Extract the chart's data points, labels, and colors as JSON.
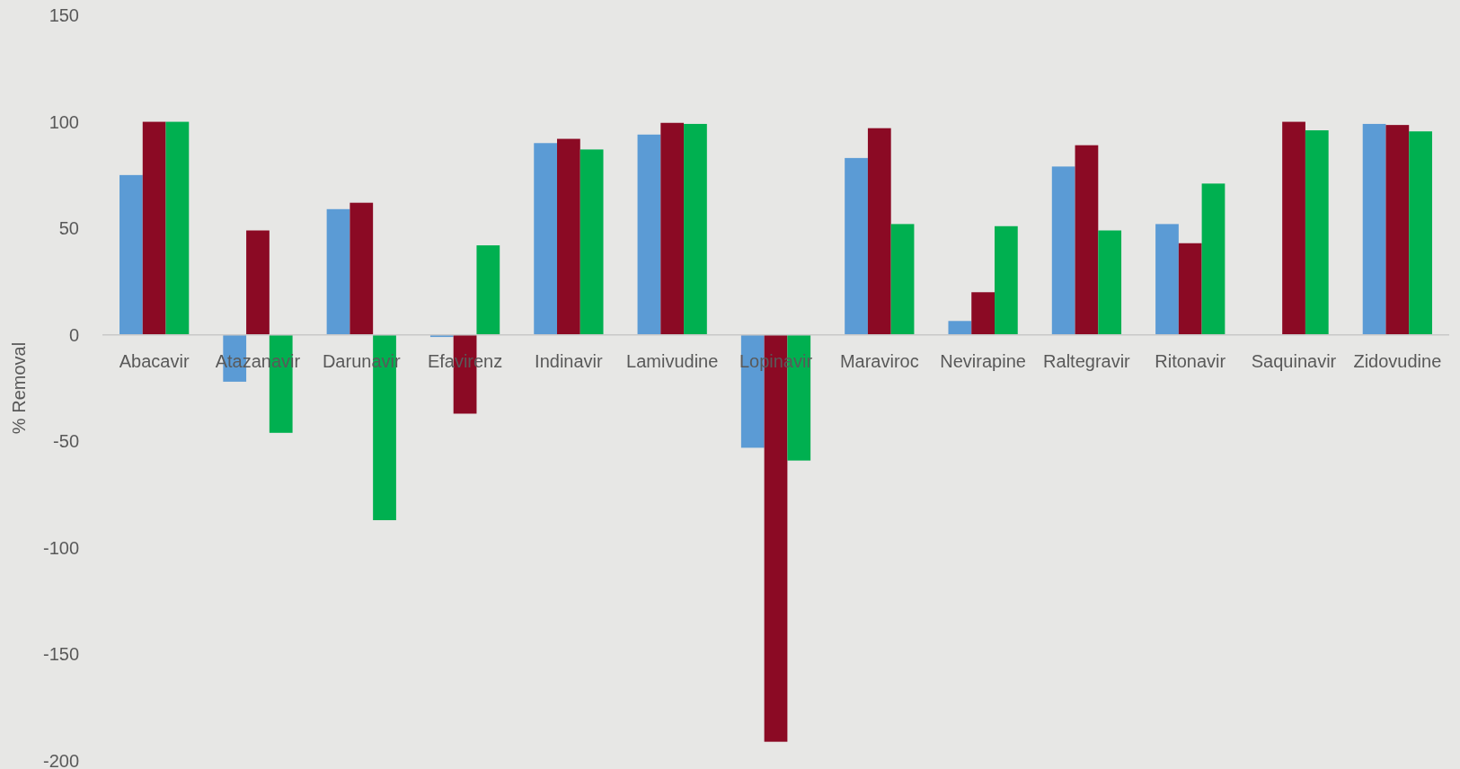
{
  "chart_data": {
    "type": "bar",
    "ylabel": "% Removal",
    "categories": [
      "Abacavir",
      "Atazanavir",
      "Darunavir",
      "Efavirenz",
      "Indinavir",
      "Lamivudine",
      "Lopinavir",
      "Maraviroc",
      "Nevirapine",
      "Raltegravir",
      "Ritonavir",
      "Saquinavir",
      "Zidovudine"
    ],
    "series": [
      {
        "color": "#5b9bd5",
        "values": [
          75,
          -22,
          59,
          -1,
          90,
          94,
          -53,
          83,
          6.5,
          79,
          52,
          null,
          99
        ]
      },
      {
        "color": "#8b0a24",
        "values": [
          100,
          49,
          62,
          -37,
          92,
          99.5,
          -191,
          97,
          20,
          89,
          43,
          100,
          98.5
        ]
      },
      {
        "color": "#00b050",
        "values": [
          100,
          -46,
          -87,
          42,
          87,
          99,
          -59,
          52,
          51,
          49,
          71,
          96,
          95.5
        ]
      }
    ],
    "ylim": [
      -200,
      150
    ],
    "yticks": [
      -200,
      -150,
      -100,
      -50,
      0,
      50,
      100,
      150
    ],
    "grid": false
  }
}
